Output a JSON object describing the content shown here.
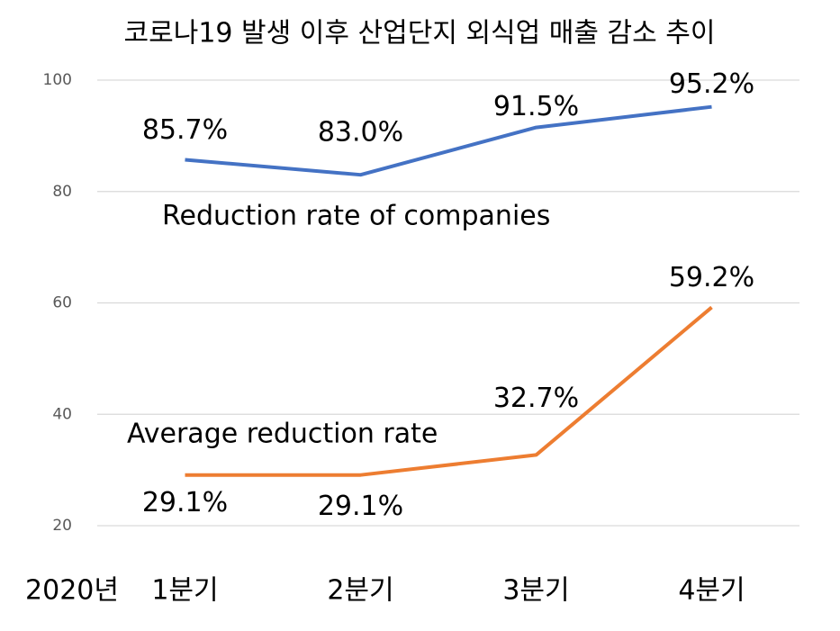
{
  "chart_data": {
    "type": "line",
    "title": "코로나19 발생 이후 산업단지 외식업 매출 감소 추이",
    "xlabel": "2020년",
    "categories": [
      "1분기",
      "2분기",
      "3분기",
      "4분기"
    ],
    "series": [
      {
        "name": "Reduction rate of companies",
        "color": "#4472c4",
        "values": [
          85.7,
          83.0,
          91.5,
          95.2
        ],
        "value_labels": [
          "85.7%",
          "83.0%",
          "91.5%",
          "95.2%"
        ]
      },
      {
        "name": "Average reduction rate",
        "color": "#ed7d31",
        "values": [
          29.1,
          29.1,
          32.7,
          59.2
        ],
        "value_labels": [
          "29.1%",
          "29.1%",
          "32.7%",
          "59.2%"
        ]
      }
    ],
    "ylim": [
      20,
      100
    ],
    "yticks": [
      20,
      40,
      60,
      80,
      100
    ],
    "grid": true
  }
}
